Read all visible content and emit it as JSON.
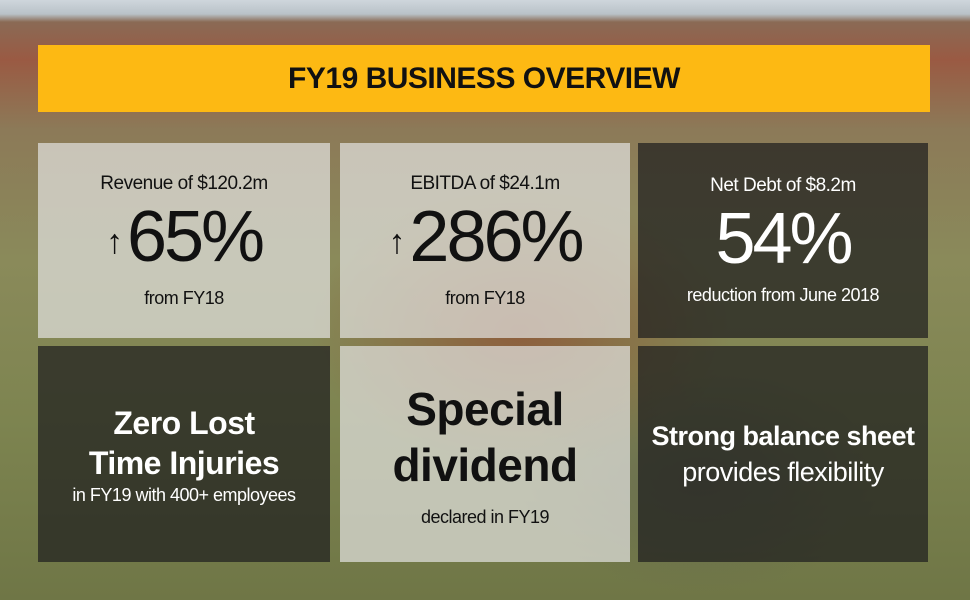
{
  "header": {
    "title": "FY19 BUSINESS OVERVIEW"
  },
  "panels": [
    {
      "label": "Revenue of $120.2m",
      "arrow": "↑",
      "value": "65%",
      "note": "from FY18"
    },
    {
      "label": "EBITDA of $24.1m",
      "arrow": "↑",
      "value": "286%",
      "note": "from FY18"
    },
    {
      "label": "Net Debt of $8.2m",
      "value": "54%",
      "note": "reduction from June 2018"
    },
    {
      "lines": [
        "Zero Lost",
        "Time Injuries"
      ],
      "note": "in FY19 with 400+ employees"
    },
    {
      "lines": [
        "Special",
        "dividend"
      ],
      "note": "declared in FY19"
    },
    {
      "lines": [
        "Strong balance sheet",
        "provides flexibility"
      ]
    }
  ]
}
